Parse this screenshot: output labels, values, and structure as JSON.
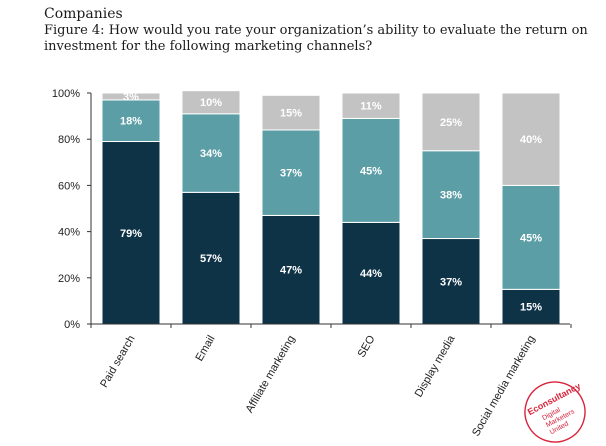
{
  "header": {
    "section": "Companies",
    "title": "Figure 4: How would you rate your organization’s ability to evaluate the return on investment for the following marketing channels?"
  },
  "watermark": {
    "brand": "Econsultancy",
    "sub": [
      "Digital",
      "Marketers",
      "United"
    ],
    "color": "#d8233b"
  },
  "chart_data": {
    "type": "bar",
    "stacked": true,
    "categories": [
      "Paid search",
      "Email",
      "Affiliate marketing",
      "SEO",
      "Display media",
      "Social media marketing"
    ],
    "series": [
      {
        "name": "bottom",
        "color": "#0e3347",
        "values": [
          79,
          57,
          47,
          44,
          37,
          15
        ],
        "labels": [
          "79%",
          "57%",
          "47%",
          "44%",
          "37%",
          "15%"
        ]
      },
      {
        "name": "middle",
        "color": "#5b9ea6",
        "values": [
          18,
          34,
          37,
          45,
          38,
          45
        ],
        "labels": [
          "18%",
          "34%",
          "37%",
          "45%",
          "38%",
          "45%"
        ]
      },
      {
        "name": "top",
        "color": "#c3c3c3",
        "values": [
          3,
          10,
          15,
          11,
          25,
          40
        ],
        "labels": [
          "3%",
          "10%",
          "15%",
          "11%",
          "25%",
          "40%"
        ]
      }
    ],
    "ylim": [
      0,
      100
    ],
    "yticks": [
      0,
      20,
      40,
      60,
      80,
      100
    ],
    "ytick_labels": [
      "0%",
      "20%",
      "40%",
      "60%",
      "80%",
      "100%"
    ],
    "xlabel": "",
    "ylabel": "",
    "legend": "none"
  }
}
